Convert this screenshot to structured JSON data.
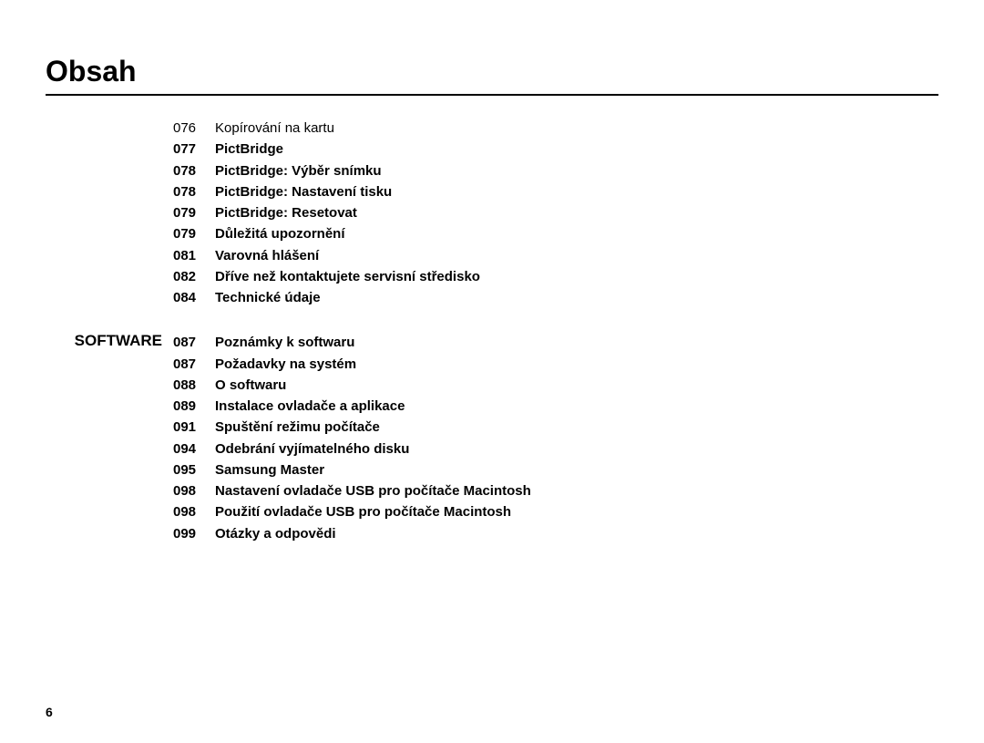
{
  "title": "Obsah",
  "pageNumber": "6",
  "sections": [
    {
      "label": "",
      "entries": [
        {
          "page": "076",
          "text": "Kopírování na kartu",
          "bold": false
        },
        {
          "page": "077",
          "text": "PictBridge",
          "bold": true
        },
        {
          "page": "078",
          "text": "PictBridge: Výběr snímku",
          "bold": true
        },
        {
          "page": "078",
          "text": "PictBridge: Nastavení tisku",
          "bold": true
        },
        {
          "page": "079",
          "text": "PictBridge: Resetovat",
          "bold": true
        },
        {
          "page": "079",
          "text": "Důležitá upozornění",
          "bold": true
        },
        {
          "page": "081",
          "text": "Varovná hlášení",
          "bold": true
        },
        {
          "page": "082",
          "text": "Dříve než kontaktujete servisní středisko",
          "bold": true
        },
        {
          "page": "084",
          "text": "Technické údaje",
          "bold": true
        }
      ]
    },
    {
      "label": "SOFTWARE",
      "entries": [
        {
          "page": "087",
          "text": "Poznámky k softwaru",
          "bold": true
        },
        {
          "page": "087",
          "text": "Požadavky na systém",
          "bold": true
        },
        {
          "page": "088",
          "text": "O softwaru",
          "bold": true
        },
        {
          "page": "089",
          "text": "Instalace ovladače a aplikace",
          "bold": true
        },
        {
          "page": "091",
          "text": "Spuštění režimu počítače",
          "bold": true
        },
        {
          "page": "094",
          "text": "Odebrání vyjímatelného disku",
          "bold": true
        },
        {
          "page": "095",
          "text": "Samsung Master",
          "bold": true
        },
        {
          "page": "098",
          "text": "Nastavení ovladače USB pro počítače Macintosh",
          "bold": true
        },
        {
          "page": "098",
          "text": "Použití ovladače USB pro počítače Macintosh",
          "bold": true
        },
        {
          "page": "099",
          "text": "Otázky a odpovědi",
          "bold": true
        }
      ]
    }
  ]
}
